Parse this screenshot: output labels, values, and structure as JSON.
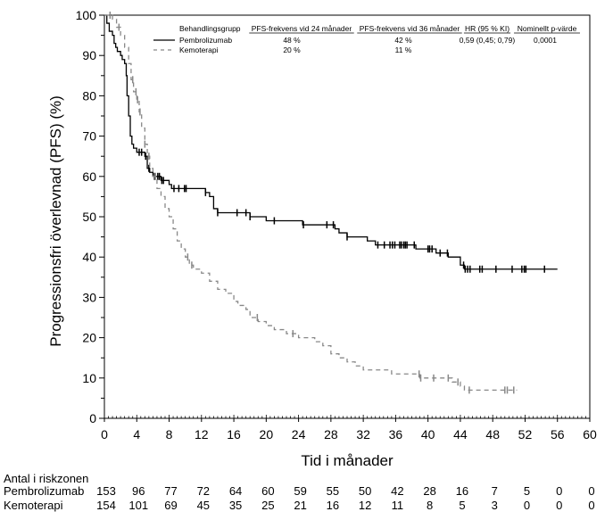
{
  "chart_data": {
    "type": "line",
    "subtype": "kaplan-meier",
    "title": "",
    "xlabel": "Tid i månader",
    "ylabel": "Progressionsfri överlevnad (PFS) (%)",
    "xlim": [
      0,
      60
    ],
    "ylim": [
      0,
      100
    ],
    "xticks": [
      0,
      4,
      8,
      12,
      16,
      20,
      24,
      28,
      32,
      36,
      40,
      44,
      48,
      52,
      56,
      60
    ],
    "yticks": [
      0,
      10,
      20,
      30,
      40,
      50,
      60,
      70,
      80,
      90,
      100
    ],
    "grid": false,
    "legend": {
      "placement": "top-right",
      "headers": [
        "Behandlingsgrupp",
        "PFS-frekvens vid 24 månader",
        "PFS-frekvens vid 36 månader",
        "HR (95 % KI)",
        "Nominellt p-värde"
      ],
      "rows": [
        {
          "group": "Pembrolizumab",
          "pfs24": "48 %",
          "pfs36": "42 %",
          "hr": "0,59 (0,45; 0,79)",
          "p": "0,0001"
        },
        {
          "group": "Kemoterapi",
          "pfs24": "20 %",
          "pfs36": "11 %",
          "hr": "",
          "p": ""
        }
      ]
    },
    "series": [
      {
        "name": "Pembrolizumab",
        "style": "solid",
        "color": "#000000",
        "steps": [
          [
            0,
            100
          ],
          [
            0.3,
            98
          ],
          [
            0.6,
            96
          ],
          [
            1.0,
            95
          ],
          [
            1.2,
            93
          ],
          [
            1.4,
            92
          ],
          [
            1.6,
            91
          ],
          [
            2.0,
            90
          ],
          [
            2.2,
            89
          ],
          [
            2.5,
            88
          ],
          [
            2.7,
            85
          ],
          [
            2.8,
            80
          ],
          [
            3.0,
            75
          ],
          [
            3.2,
            70
          ],
          [
            3.4,
            68
          ],
          [
            3.6,
            67
          ],
          [
            4.0,
            66
          ],
          [
            4.5,
            66
          ],
          [
            5.0,
            65
          ],
          [
            5.3,
            62
          ],
          [
            5.6,
            61
          ],
          [
            6.0,
            60
          ],
          [
            6.5,
            60
          ],
          [
            7.0,
            59
          ],
          [
            7.5,
            59
          ],
          [
            8.0,
            58
          ],
          [
            8.3,
            57
          ],
          [
            9.0,
            57
          ],
          [
            10.0,
            57
          ],
          [
            11.0,
            57
          ],
          [
            12.5,
            56
          ],
          [
            13.0,
            55
          ],
          [
            13.5,
            52
          ],
          [
            14.0,
            51
          ],
          [
            16.0,
            51
          ],
          [
            17.5,
            51
          ],
          [
            18.0,
            50
          ],
          [
            19.5,
            50
          ],
          [
            20.0,
            49
          ],
          [
            22.0,
            49
          ],
          [
            24.5,
            48
          ],
          [
            26.0,
            48
          ],
          [
            27.5,
            48
          ],
          [
            28.5,
            47
          ],
          [
            29.0,
            46
          ],
          [
            30.0,
            45
          ],
          [
            31.0,
            45
          ],
          [
            32.5,
            44
          ],
          [
            33.5,
            43
          ],
          [
            34.0,
            43
          ],
          [
            36.0,
            43
          ],
          [
            38.5,
            42
          ],
          [
            40.0,
            42
          ],
          [
            41.0,
            41
          ],
          [
            42.5,
            40
          ],
          [
            43.5,
            40
          ],
          [
            44.0,
            38
          ],
          [
            44.5,
            37
          ],
          [
            56.0,
            37
          ]
        ],
        "censor": [
          4.3,
          4.6,
          5.1,
          5.5,
          6.2,
          6.6,
          6.8,
          7.1,
          7.3,
          8.6,
          9.2,
          9.9,
          10.1,
          12.5,
          14.0,
          16.4,
          17.5,
          18.0,
          21.0,
          24.6,
          27.5,
          28.3,
          30.0,
          33.8,
          34.6,
          35.3,
          35.6,
          35.9,
          36.5,
          36.7,
          37.0,
          37.2,
          37.4,
          38.3,
          40.0,
          40.2,
          40.5,
          41.5,
          42.4,
          44.4,
          44.6,
          44.9,
          45.2,
          46.4,
          46.7,
          48.4,
          50.4,
          51.6,
          51.9,
          52.1,
          54.4
        ]
      },
      {
        "name": "Kemoterapi",
        "style": "dashed",
        "color": "#888888",
        "steps": [
          [
            0,
            100
          ],
          [
            1.0,
            99
          ],
          [
            1.5,
            97
          ],
          [
            2.0,
            95
          ],
          [
            2.5,
            92
          ],
          [
            3.0,
            88
          ],
          [
            3.3,
            84
          ],
          [
            3.6,
            81
          ],
          [
            4.0,
            79
          ],
          [
            4.3,
            76
          ],
          [
            4.6,
            72
          ],
          [
            5.0,
            68
          ],
          [
            5.3,
            65
          ],
          [
            5.6,
            62
          ],
          [
            6.0,
            60
          ],
          [
            6.5,
            57
          ],
          [
            7.0,
            55
          ],
          [
            7.5,
            52
          ],
          [
            8.0,
            50
          ],
          [
            8.5,
            47
          ],
          [
            9.0,
            44
          ],
          [
            9.5,
            42
          ],
          [
            10.0,
            40
          ],
          [
            10.5,
            38
          ],
          [
            11.0,
            37
          ],
          [
            12.0,
            36
          ],
          [
            13.0,
            34
          ],
          [
            14.0,
            32
          ],
          [
            15.0,
            31
          ],
          [
            16.0,
            29
          ],
          [
            16.5,
            28
          ],
          [
            17.5,
            27
          ],
          [
            18.0,
            25
          ],
          [
            19.0,
            24
          ],
          [
            20.0,
            23
          ],
          [
            21.0,
            22
          ],
          [
            22.5,
            21
          ],
          [
            24.0,
            20
          ],
          [
            26.0,
            19
          ],
          [
            27.0,
            18
          ],
          [
            28.0,
            16
          ],
          [
            29.0,
            15
          ],
          [
            30.0,
            14
          ],
          [
            31.0,
            13
          ],
          [
            32.0,
            12
          ],
          [
            34.0,
            12
          ],
          [
            35.5,
            11
          ],
          [
            38.0,
            11
          ],
          [
            39.0,
            10
          ],
          [
            42.0,
            10
          ],
          [
            43.0,
            9
          ],
          [
            44.0,
            8
          ],
          [
            44.5,
            7
          ],
          [
            51.0,
            7
          ]
        ],
        "censor": [
          0.7,
          1.8,
          3.5,
          3.9,
          4.1,
          4.4,
          5.0,
          5.5,
          6.3,
          10.3,
          10.8,
          18.9,
          23.3,
          38.9,
          39.1,
          40.7,
          42.5,
          43.7,
          45.1,
          49.5,
          49.8,
          50.6
        ]
      }
    ],
    "risk_table": {
      "title": "Antal i riskzonen",
      "times": [
        0,
        4,
        8,
        12,
        16,
        20,
        24,
        28,
        32,
        36,
        40,
        44,
        48,
        52,
        56,
        60
      ],
      "rows": [
        {
          "name": "Pembrolizumab",
          "values": [
            153,
            96,
            77,
            72,
            64,
            60,
            59,
            55,
            50,
            42,
            28,
            16,
            7,
            5,
            0,
            0
          ]
        },
        {
          "name": "Kemoterapi",
          "values": [
            154,
            101,
            69,
            45,
            35,
            25,
            21,
            16,
            12,
            11,
            8,
            5,
            3,
            0,
            0,
            0
          ]
        }
      ]
    }
  }
}
